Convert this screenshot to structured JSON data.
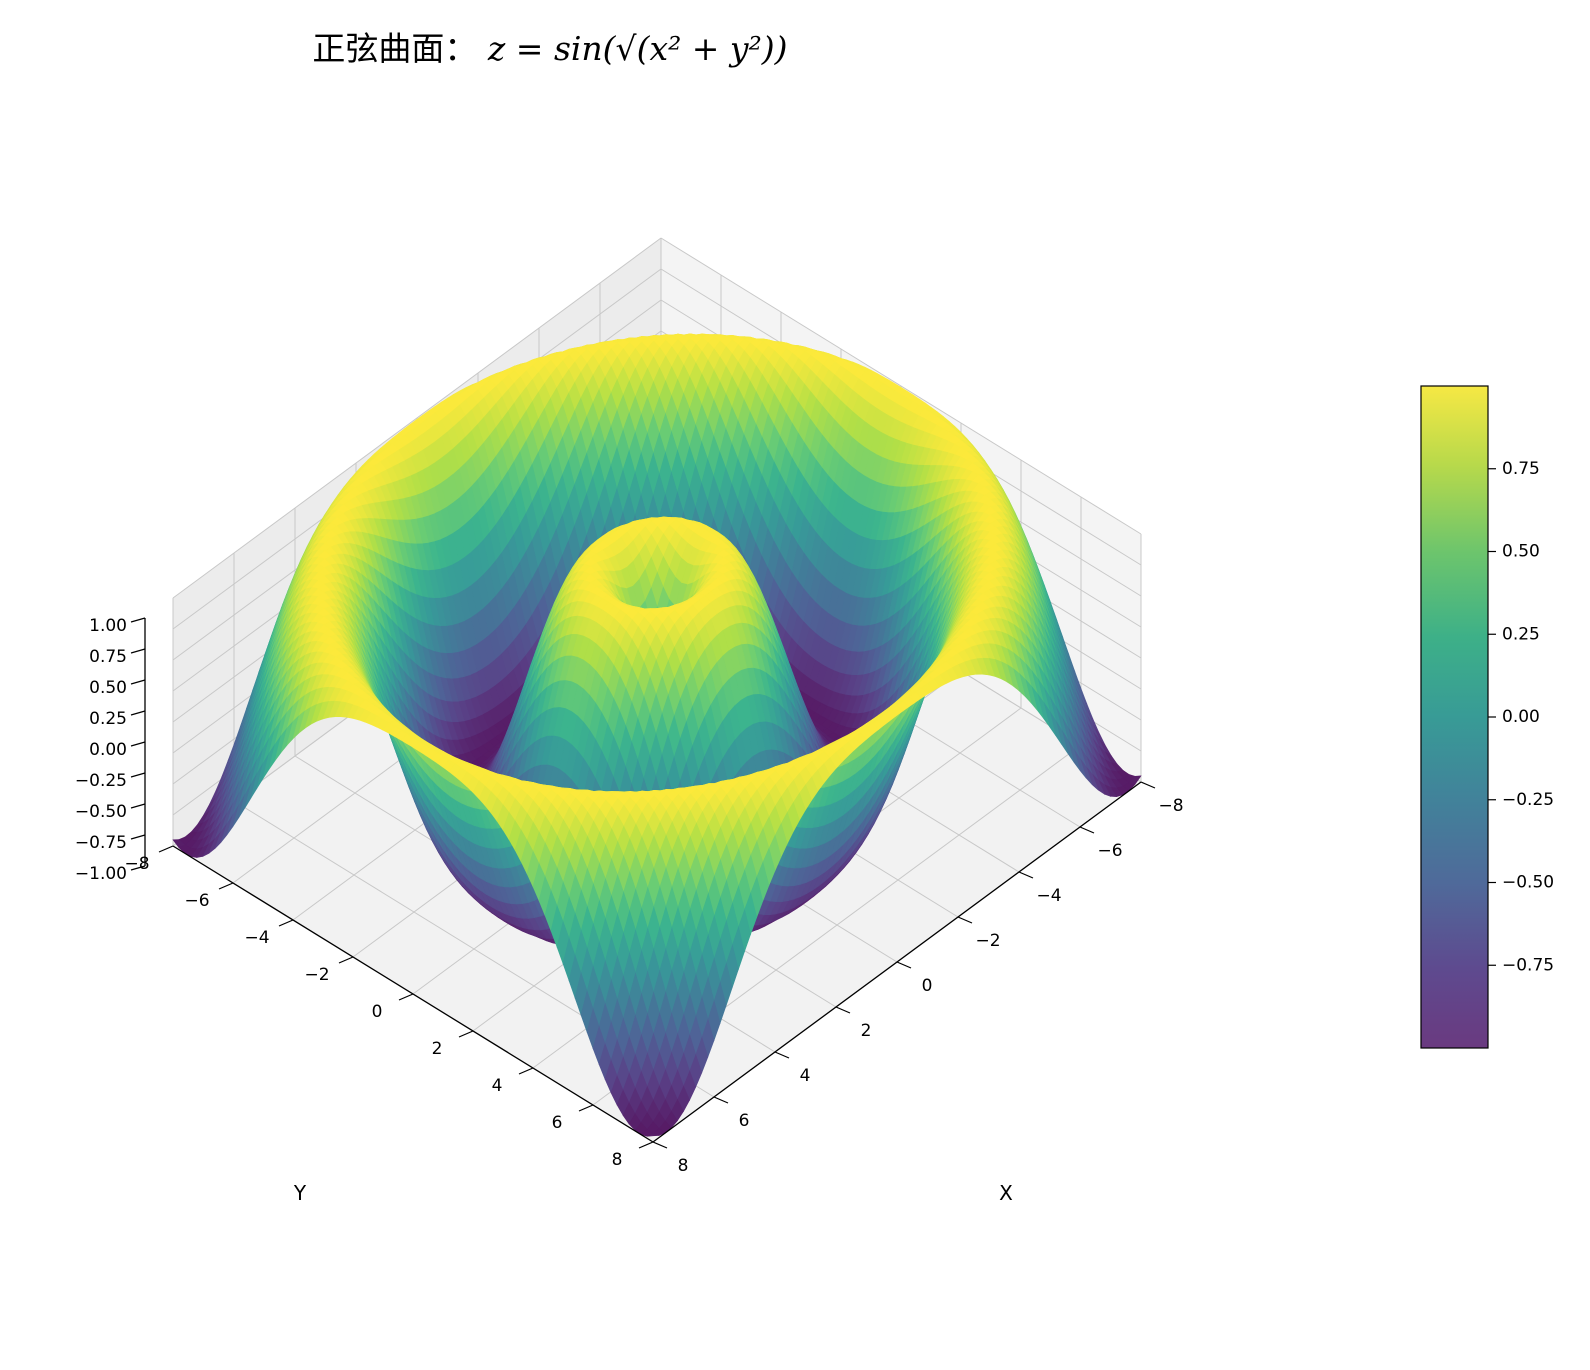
{
  "chart_data": {
    "type": "surface3d",
    "title": "正弦曲面：",
    "title_formula": "z = sin(√(x² + y²))",
    "function": "z = sin(sqrt(x^2 + y^2))",
    "xlabel": "X",
    "ylabel": "Y",
    "zlabel": "",
    "xlim": [
      -8,
      8
    ],
    "ylim": [
      -8,
      8
    ],
    "zlim": [
      -1,
      1
    ],
    "x_ticks": [
      "−8",
      "−6",
      "−4",
      "−2",
      "0",
      "2",
      "4",
      "6",
      "8"
    ],
    "y_ticks": [
      "−8",
      "−6",
      "−4",
      "−2",
      "0",
      "2",
      "4",
      "6",
      "8"
    ],
    "z_ticks": [
      "1.00",
      "0.75",
      "0.50",
      "0.25",
      "0.00",
      "−0.25",
      "−0.50",
      "−0.75",
      "−1.00"
    ],
    "colormap": "viridis",
    "colorbar": {
      "ticks": [
        "0.75",
        "0.50",
        "0.25",
        "0.00",
        "−0.25",
        "−0.50",
        "−0.75"
      ],
      "range": [
        -1,
        1
      ]
    },
    "grid": true,
    "view": {
      "elev": 30,
      "azim": 45
    }
  }
}
